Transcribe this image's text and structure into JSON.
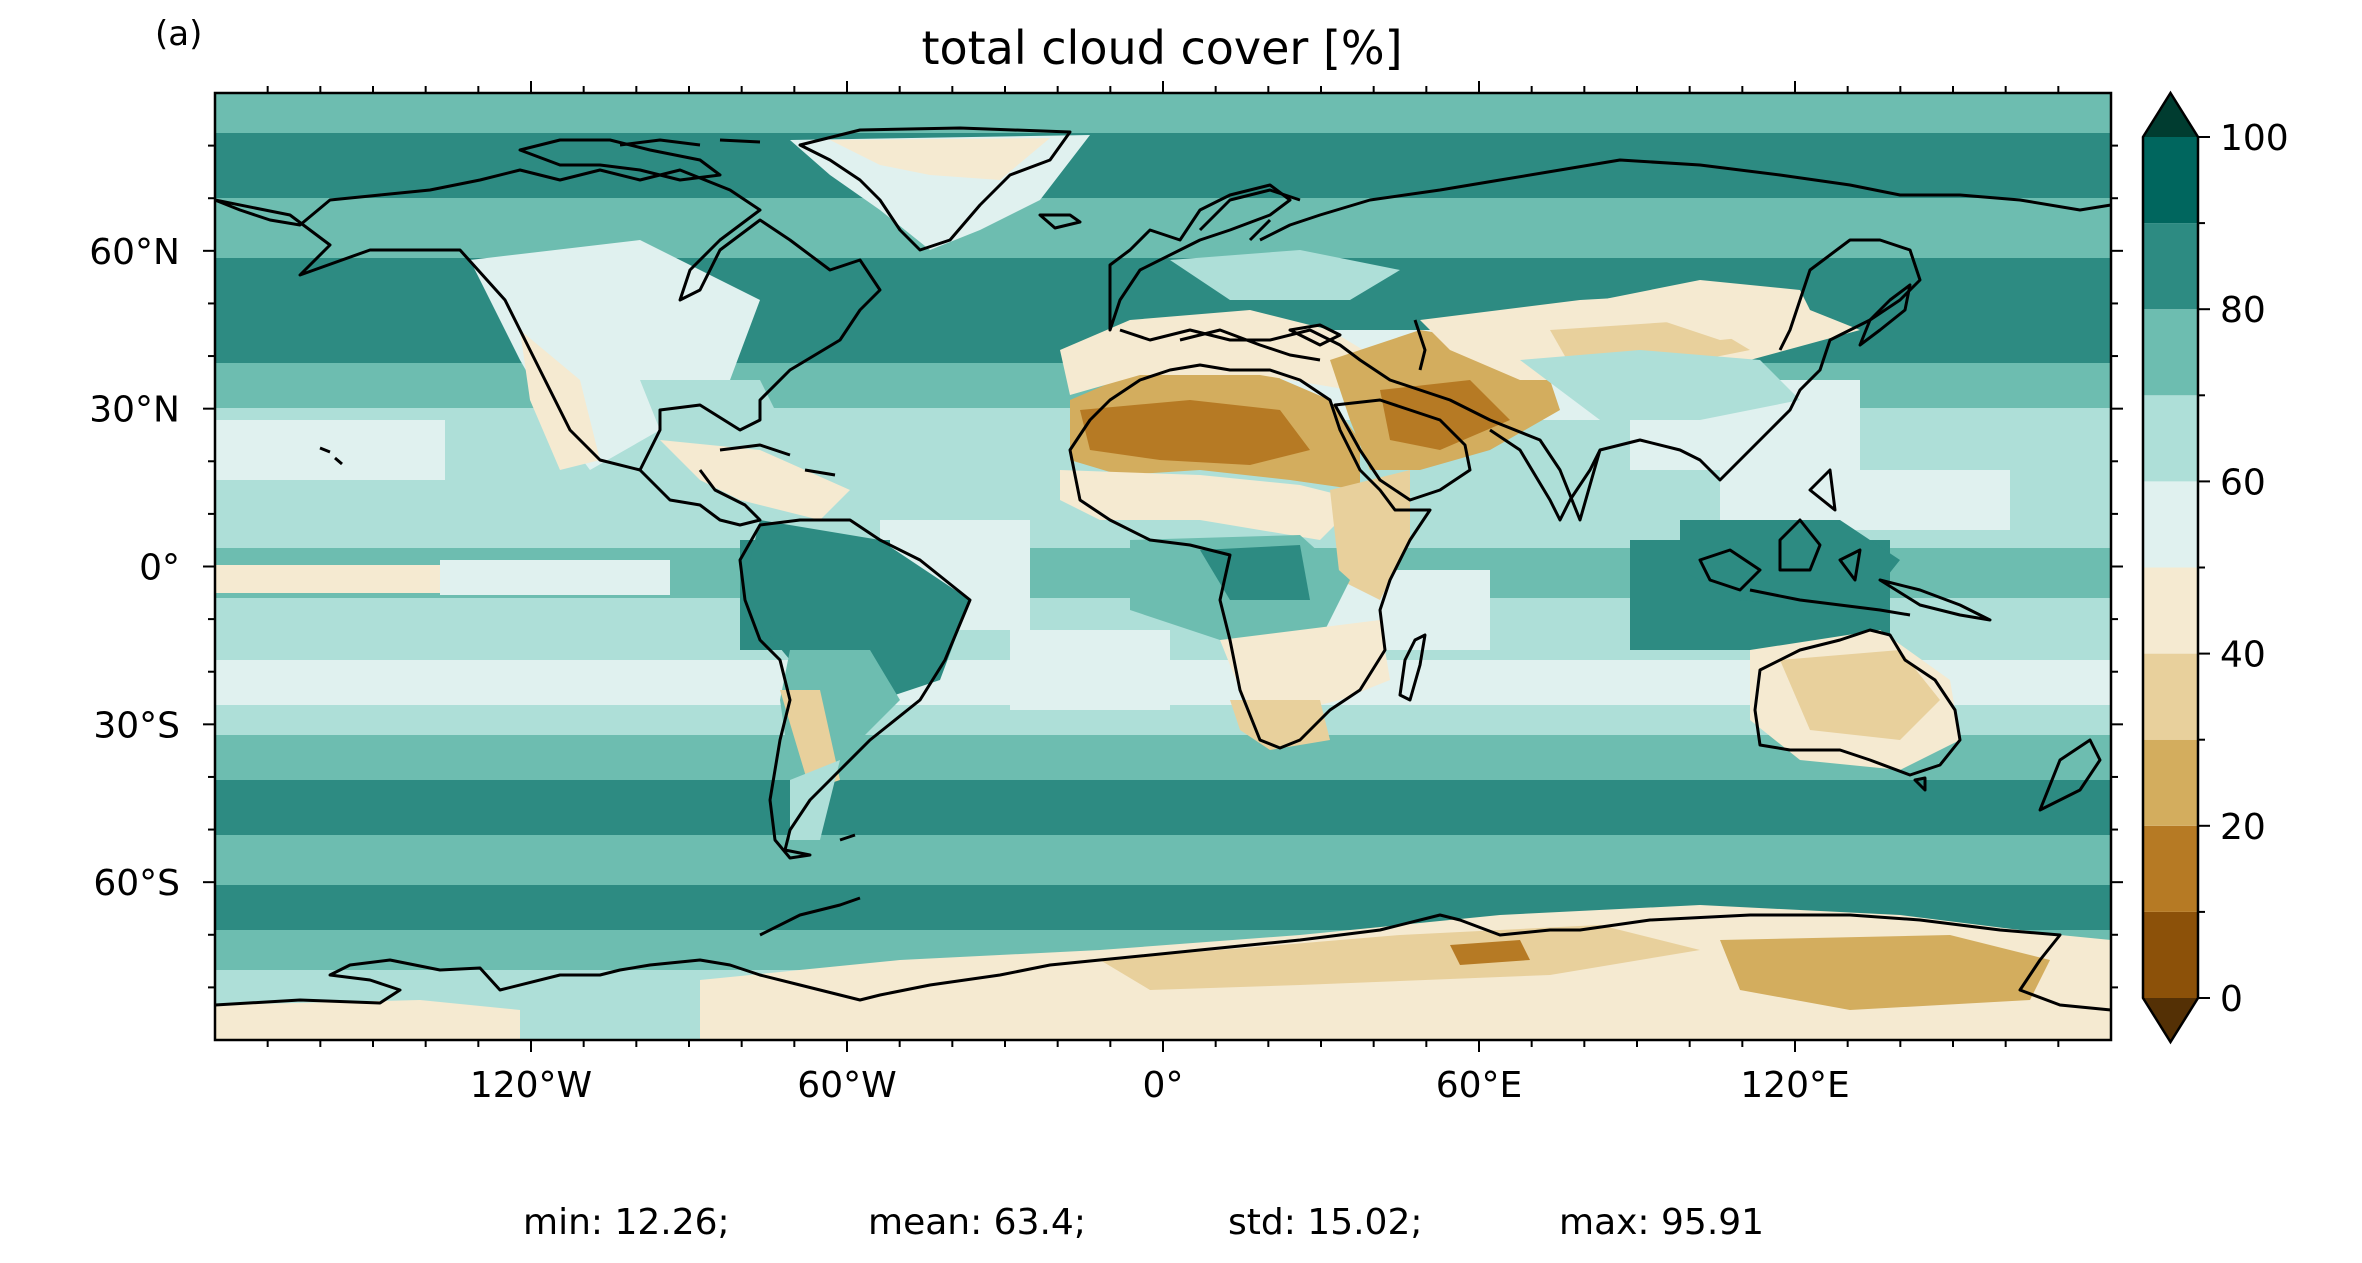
{
  "panel_label": "(a)",
  "title": "total cloud cover [%]",
  "lon_ticks": [
    {
      "value": -120,
      "label": "120°W"
    },
    {
      "value": -60,
      "label": "60°W"
    },
    {
      "value": 0,
      "label": "0°"
    },
    {
      "value": 60,
      "label": "60°E"
    },
    {
      "value": 120,
      "label": "120°E"
    }
  ],
  "lat_ticks": [
    {
      "value": 60,
      "label": "60°N"
    },
    {
      "value": 30,
      "label": "30°N"
    },
    {
      "value": 0,
      "label": "0°"
    },
    {
      "value": -30,
      "label": "30°S"
    },
    {
      "value": -60,
      "label": "60°S"
    }
  ],
  "colorbar": {
    "levels": [
      0,
      10,
      20,
      30,
      40,
      50,
      60,
      70,
      80,
      90,
      100
    ],
    "tick_labels": [
      "0",
      "20",
      "40",
      "60",
      "80",
      "100"
    ],
    "colors": [
      "#8c5109",
      "#b67a24",
      "#d3ad5e",
      "#e8d09c",
      "#f5ead1",
      "#e0f1ef",
      "#aedfd8",
      "#6dbdb0",
      "#2d8b82",
      "#00665e"
    ],
    "under_color": "#543005",
    "over_color": "#003c30",
    "extend": "both"
  },
  "stats": {
    "min": "min: 12.26;",
    "mean": "mean: 63.4;",
    "std": "std: 15.02;",
    "max": "max: 95.91"
  }
}
